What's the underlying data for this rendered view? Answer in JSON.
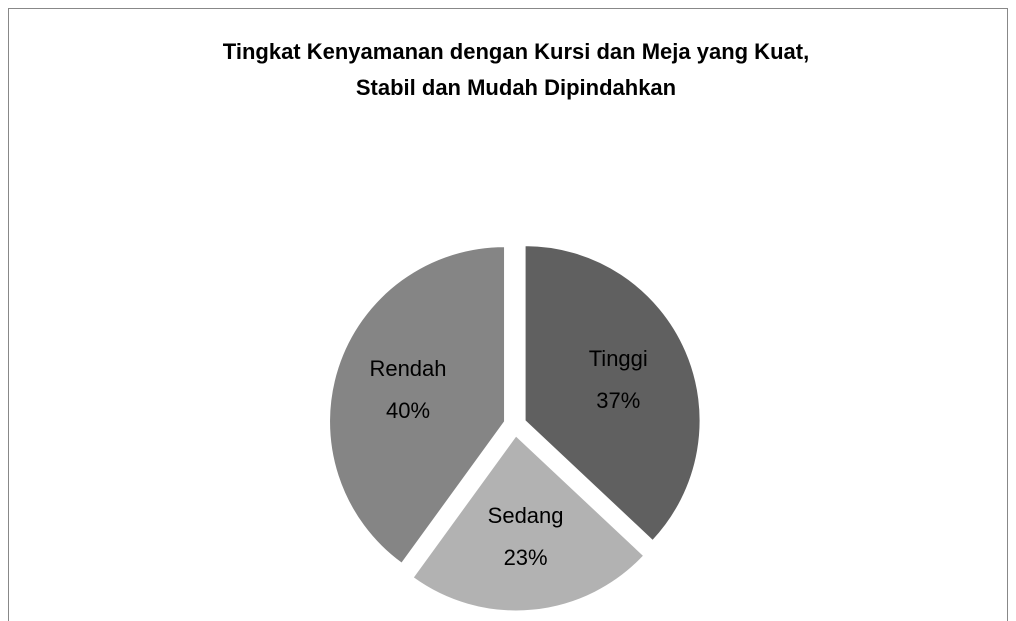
{
  "chart_data": {
    "type": "pie",
    "title": [
      "Tingkat Kenyamanan dengan Kursi dan Meja yang Kuat,",
      "Stabil dan Mudah Dipindahkan"
    ],
    "categories": [
      "Tinggi",
      "Sedang",
      "Rendah"
    ],
    "values": [
      37,
      23,
      40
    ],
    "value_labels": [
      "37%",
      "23%",
      "40%"
    ],
    "colors": [
      "#606060",
      "#b2b2b2",
      "#858585"
    ]
  }
}
